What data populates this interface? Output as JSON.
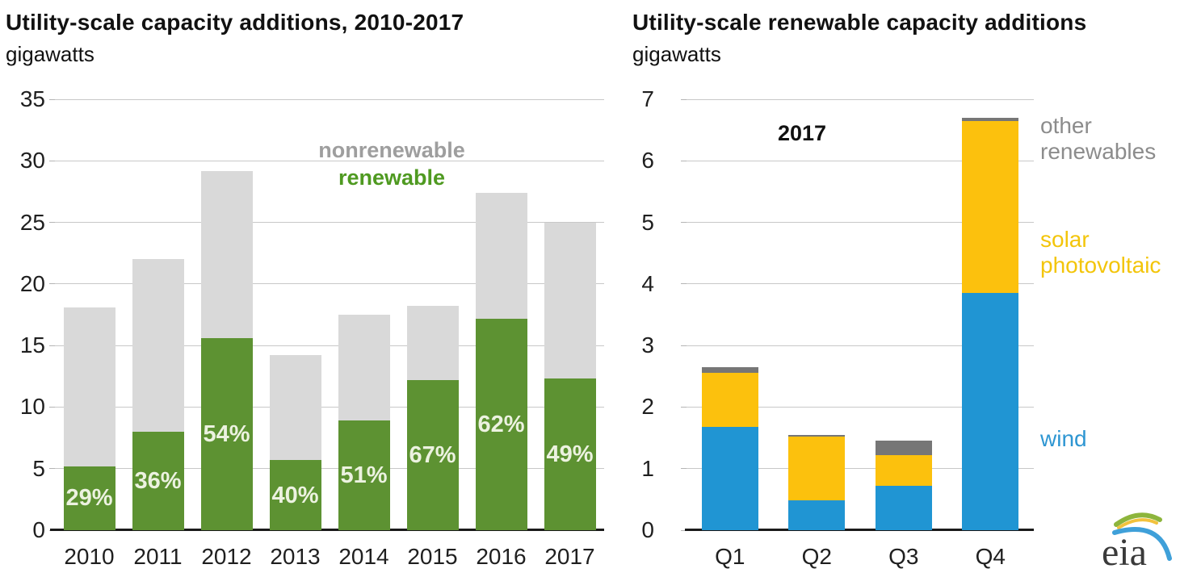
{
  "chart_data": [
    {
      "type": "bar",
      "stacked": true,
      "title": "Utility-scale capacity additions, 2010-2017",
      "subtitle": "gigawatts",
      "categories": [
        "2010",
        "2011",
        "2012",
        "2013",
        "2014",
        "2015",
        "2016",
        "2017"
      ],
      "series": [
        {
          "name": "renewable",
          "color": "#5d9232",
          "values": [
            5.2,
            8.0,
            15.6,
            5.7,
            8.9,
            12.2,
            17.2,
            12.3
          ]
        },
        {
          "name": "nonrenewable",
          "color": "#d9d9d9",
          "values": [
            12.9,
            14.0,
            13.6,
            8.5,
            8.6,
            6.0,
            10.2,
            12.7
          ]
        }
      ],
      "totals": [
        18.1,
        22.0,
        29.2,
        14.2,
        17.5,
        18.2,
        27.4,
        25.0
      ],
      "bar_labels": [
        "29%",
        "36%",
        "54%",
        "40%",
        "51%",
        "67%",
        "62%",
        "49%"
      ],
      "bar_label_color": "#ecf2e0",
      "ylim": [
        0,
        35
      ],
      "ytick_step": 5,
      "grid": true,
      "legend_position": "inside-top-right",
      "legend": [
        {
          "label": "nonrenewable",
          "color": "#9e9e9e"
        },
        {
          "label": "renewable",
          "color": "#4f9a21"
        }
      ]
    },
    {
      "type": "bar",
      "stacked": true,
      "title": "Utility-scale renewable capacity additions",
      "subtitle": "gigawatts",
      "annotation": "2017",
      "categories": [
        "Q1",
        "Q2",
        "Q3",
        "Q4"
      ],
      "series": [
        {
          "name": "wind",
          "color": "#2095d3",
          "values": [
            1.68,
            0.48,
            0.72,
            3.85
          ]
        },
        {
          "name": "solar photovoltaic",
          "color": "#fcc10d",
          "values": [
            0.88,
            1.04,
            0.5,
            2.8
          ]
        },
        {
          "name": "other renewables",
          "color": "#767676",
          "values": [
            0.09,
            0.03,
            0.24,
            0.05
          ]
        }
      ],
      "totals": [
        2.65,
        1.55,
        1.46,
        6.7
      ],
      "ylim": [
        0,
        7
      ],
      "ytick_step": 1,
      "grid": true,
      "side_labels": [
        {
          "label": "other renewables",
          "color": "#8c8c8c"
        },
        {
          "label": "solar photovoltaic",
          "color": "#f3c50a"
        },
        {
          "label": "wind",
          "color": "#2e96d2"
        }
      ]
    }
  ],
  "logo": {
    "text": "eia"
  },
  "colors": {
    "gridline": "#c8c8c8",
    "axis_line": "#1a1a1a",
    "tick_text": "#1f1f1f",
    "background": "#ffffff"
  }
}
